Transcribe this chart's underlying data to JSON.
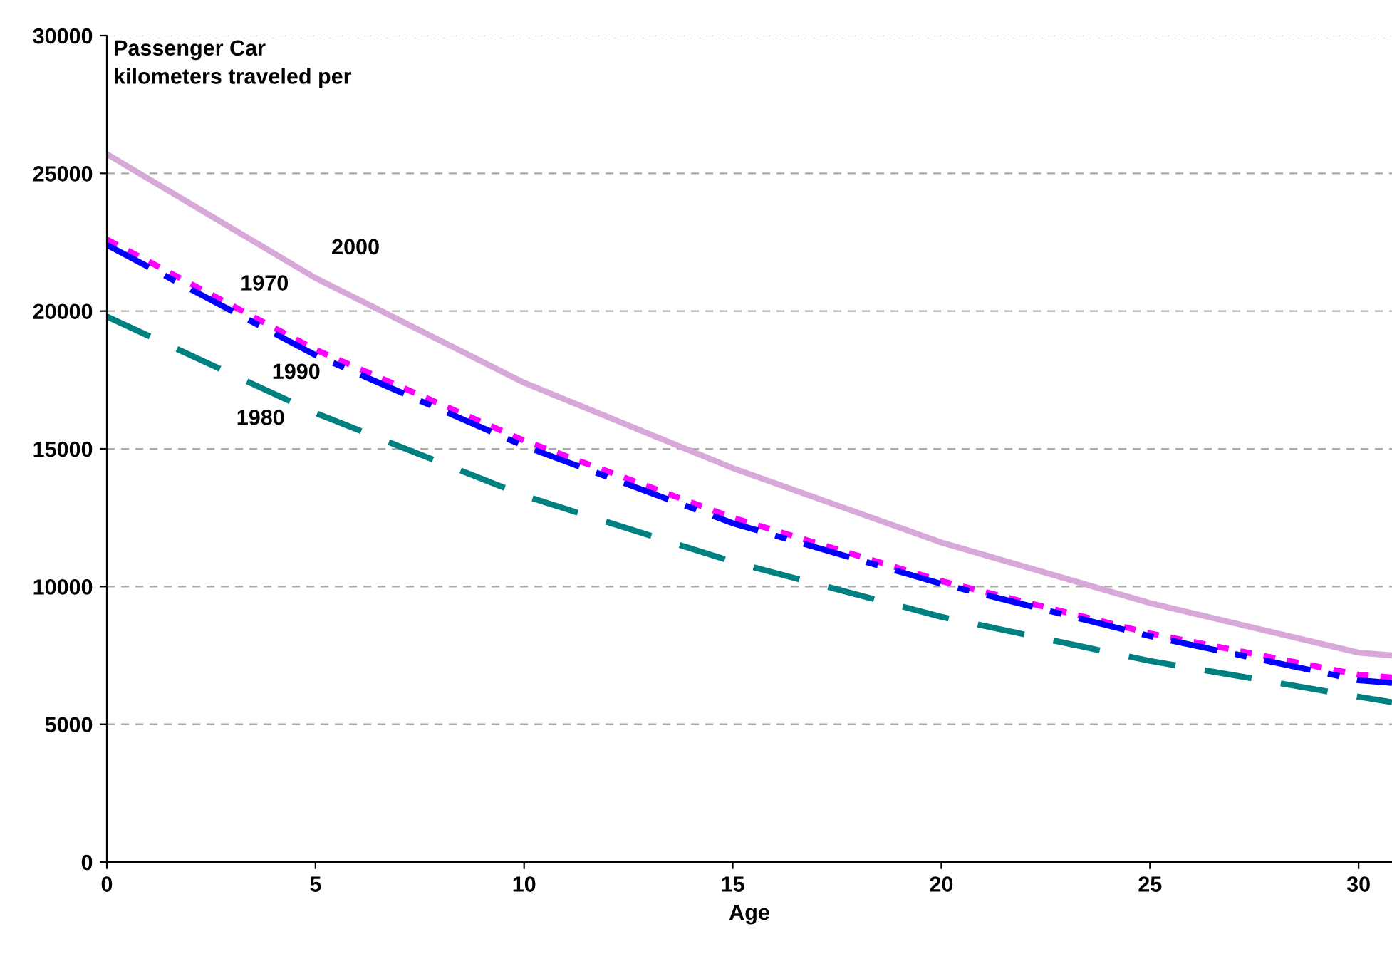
{
  "chart_data": {
    "type": "line",
    "ylabel": "Passenger Car\nkilometers traveled per",
    "xlabel": "Age",
    "x": [
      0,
      5,
      10,
      15,
      20,
      25,
      30,
      30.8
    ],
    "series": [
      {
        "name": "2000",
        "color": "#d8a8d8",
        "line_style": "solid",
        "values": [
          25700,
          21200,
          17400,
          14300,
          11600,
          9400,
          7600,
          7500
        ]
      },
      {
        "name": "1970",
        "color": "#ff00ff",
        "line_style": "dotted",
        "values": [
          22600,
          18600,
          15300,
          12500,
          10200,
          8300,
          6800,
          6700
        ]
      },
      {
        "name": "1990",
        "color": "#0000ff",
        "line_style": "dashdot",
        "values": [
          22400,
          18400,
          15100,
          12300,
          10100,
          8200,
          6600,
          6500
        ]
      },
      {
        "name": "1980",
        "color": "#008080",
        "line_style": "dashed",
        "values": [
          19800,
          16300,
          13300,
          10900,
          8900,
          7300,
          6000,
          5800
        ]
      }
    ],
    "xlim": [
      0,
      30.8
    ],
    "xticks": [
      0,
      5,
      10,
      15,
      20,
      25,
      30
    ],
    "ylim": [
      0,
      30000
    ],
    "yticks": [
      0,
      5000,
      10000,
      15000,
      20000,
      25000,
      30000
    ],
    "grid": "y",
    "legend": false,
    "marker": "none"
  }
}
